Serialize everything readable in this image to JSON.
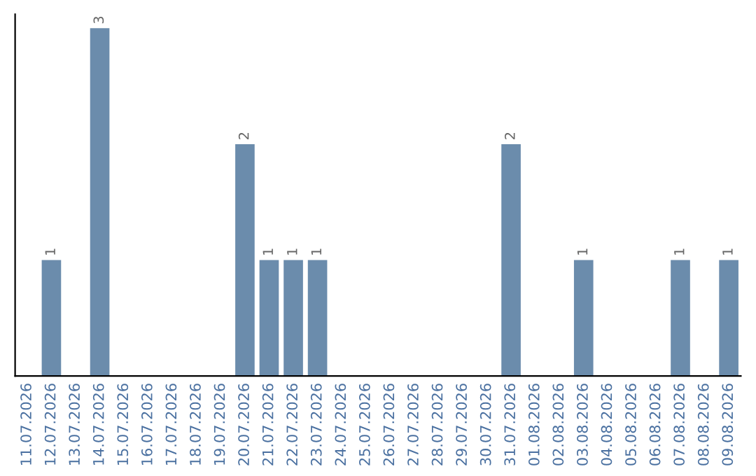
{
  "chart_data": {
    "type": "bar",
    "categories": [
      "11.07.2026",
      "12.07.2026",
      "13.07.2026",
      "14.07.2026",
      "15.07.2026",
      "16.07.2026",
      "17.07.2026",
      "18.07.2026",
      "19.07.2026",
      "20.07.2026",
      "21.07.2026",
      "22.07.2026",
      "23.07.2026",
      "24.07.2026",
      "25.07.2026",
      "26.07.2026",
      "27.07.2026",
      "28.07.2026",
      "29.07.2026",
      "30.07.2026",
      "31.07.2026",
      "01.08.2026",
      "02.08.2026",
      "03.08.2026",
      "04.08.2026",
      "05.08.2026",
      "06.08.2026",
      "07.08.2026",
      "08.08.2026",
      "09.08.2026"
    ],
    "values": [
      0,
      1,
      0,
      3,
      0,
      0,
      0,
      0,
      0,
      2,
      1,
      1,
      1,
      0,
      0,
      0,
      0,
      0,
      0,
      0,
      2,
      0,
      0,
      1,
      0,
      0,
      0,
      1,
      0,
      1
    ],
    "color": "#6b8cac",
    "value_labels": [
      null,
      "1",
      null,
      "3",
      null,
      null,
      null,
      null,
      null,
      "2",
      "1",
      "1",
      "1",
      null,
      null,
      null,
      null,
      null,
      null,
      null,
      "2",
      null,
      null,
      "1",
      null,
      null,
      null,
      "1",
      null,
      "1"
    ],
    "tick_labels": "x"
  }
}
